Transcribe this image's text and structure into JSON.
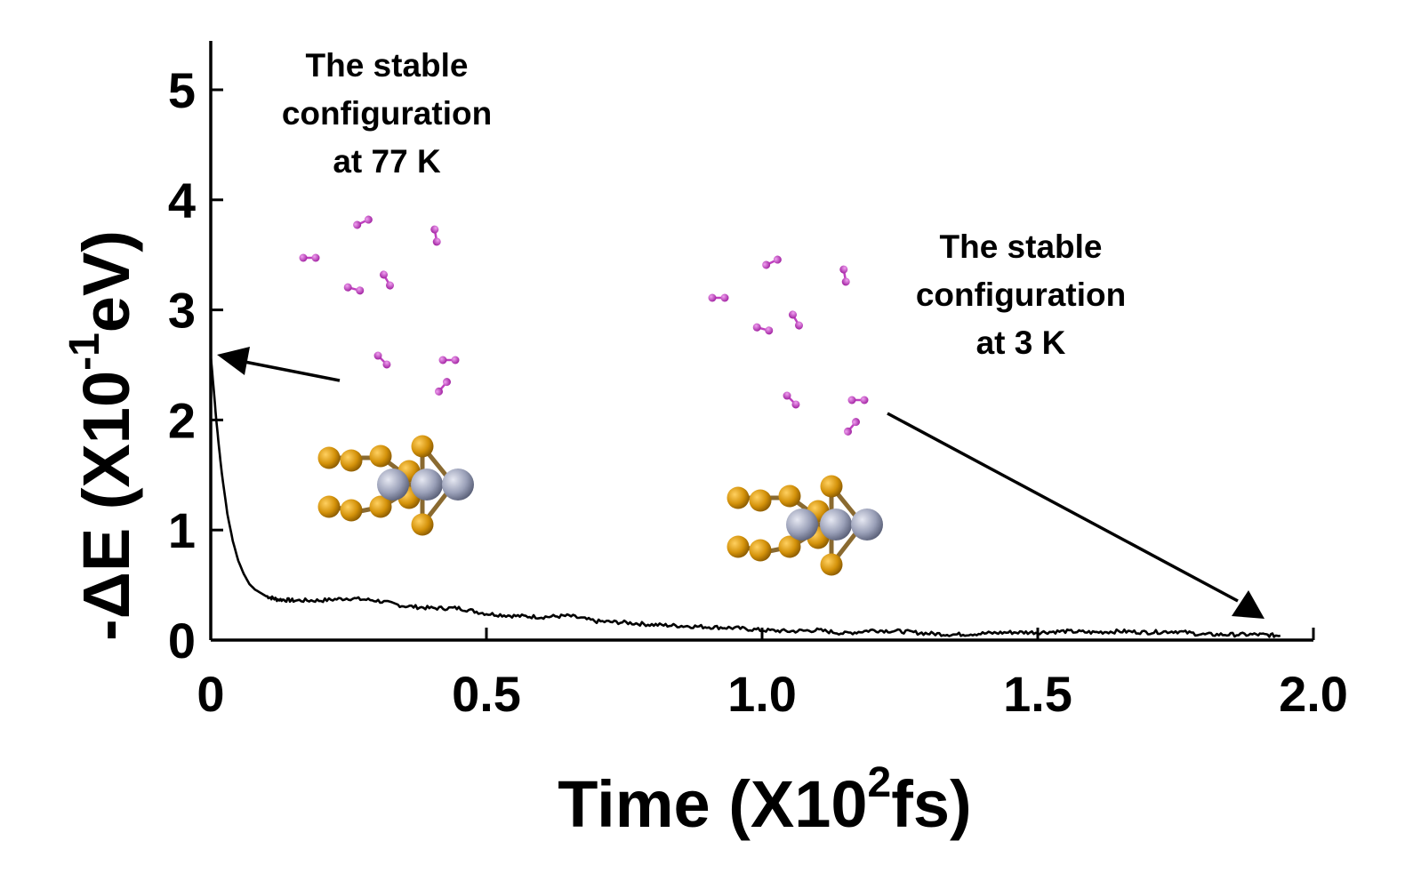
{
  "chart_data": {
    "type": "line",
    "title": "",
    "xlabel": {
      "prefix": "Time (X10",
      "sup": "2",
      "suffix": "fs)"
    },
    "ylabel": {
      "prefix": "-ΔE (X10",
      "sup": "-1",
      "suffix": "eV)"
    },
    "xlim": [
      0,
      2.0
    ],
    "ylim": [
      0,
      5.4
    ],
    "xticks": [
      {
        "value": 0,
        "label": "0"
      },
      {
        "value": 0.5,
        "label": "0.5"
      },
      {
        "value": 1.0,
        "label": "1.0"
      },
      {
        "value": 1.5,
        "label": "1.5"
      },
      {
        "value": 2.0,
        "label": "2.0"
      }
    ],
    "yticks": [
      {
        "value": 0,
        "label": "0"
      },
      {
        "value": 1,
        "label": "1"
      },
      {
        "value": 2,
        "label": "2"
      },
      {
        "value": 3,
        "label": "3"
      },
      {
        "value": 4,
        "label": "4"
      },
      {
        "value": 5,
        "label": "5"
      }
    ],
    "grid": false,
    "legend": "none",
    "series": [
      {
        "color": "#000000",
        "x": [
          0,
          0.005,
          0.01,
          0.015,
          0.02,
          0.03,
          0.04,
          0.05,
          0.06,
          0.07,
          0.08,
          0.1,
          0.12,
          0.15,
          0.2,
          0.25,
          0.3,
          0.35,
          0.4,
          0.45,
          0.5,
          0.55,
          0.6,
          0.65,
          0.7,
          0.75,
          0.8,
          0.85,
          0.9,
          0.95,
          1.0,
          1.05,
          1.1,
          1.15,
          1.2,
          1.25,
          1.3,
          1.35,
          1.4,
          1.45,
          1.5,
          1.55,
          1.6,
          1.65,
          1.7,
          1.75,
          1.8,
          1.85,
          1.9,
          1.94
        ],
        "y": [
          2.58,
          2.3,
          2.0,
          1.75,
          1.52,
          1.15,
          0.9,
          0.72,
          0.6,
          0.51,
          0.46,
          0.4,
          0.37,
          0.36,
          0.36,
          0.38,
          0.36,
          0.31,
          0.29,
          0.29,
          0.24,
          0.22,
          0.21,
          0.22,
          0.17,
          0.16,
          0.14,
          0.13,
          0.12,
          0.11,
          0.09,
          0.08,
          0.09,
          0.06,
          0.09,
          0.08,
          0.06,
          0.05,
          0.06,
          0.07,
          0.07,
          0.08,
          0.07,
          0.08,
          0.07,
          0.08,
          0.05,
          0.05,
          0.05,
          0.04
        ]
      }
    ],
    "annotations": [
      {
        "lines": [
          "The stable",
          "configuration",
          "at 77 K"
        ],
        "points_to": {
          "x": 0.0,
          "y": 2.58
        }
      },
      {
        "lines": [
          "The stable",
          "configuration",
          "at 3 K"
        ],
        "points_to": {
          "x": 1.9,
          "y": 0.2
        }
      }
    ],
    "insets": [
      {
        "description": "molecular structure: H2 molecules above MoS2-like cluster",
        "h2_color": "#c040c0",
        "s_color": "#d4920a",
        "metal_color": "#9aa0b8"
      },
      {
        "description": "molecular structure: H2 molecules above MoS2-like cluster",
        "h2_color": "#c040c0",
        "s_color": "#d4920a",
        "metal_color": "#9aa0b8"
      }
    ]
  }
}
